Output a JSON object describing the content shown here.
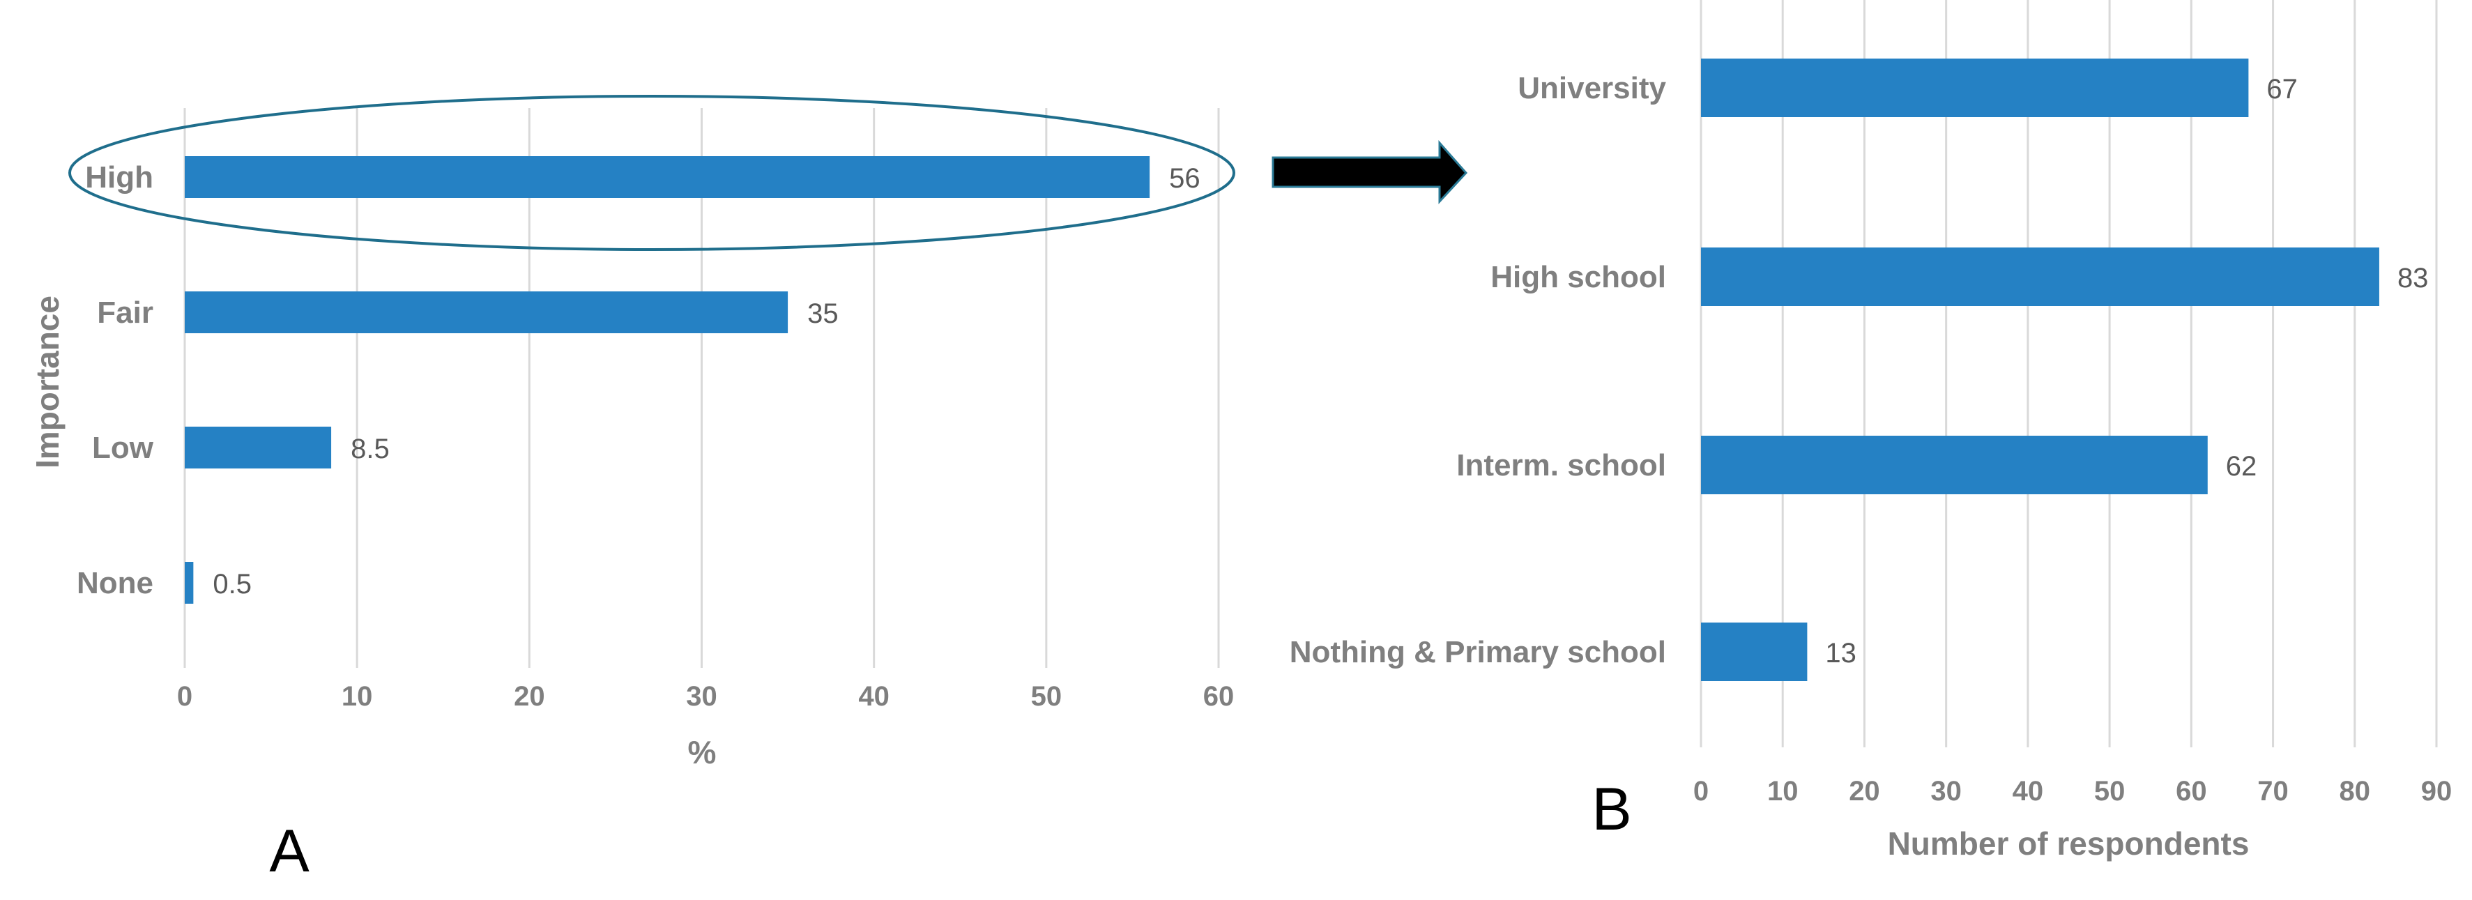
{
  "colors": {
    "bar": "#2581c4",
    "ellipse": "#1f6e8c",
    "arrow_fill": "#000000",
    "arrow_stroke": "#2a7a96"
  },
  "chart_data": [
    {
      "panel": "A",
      "type": "bar",
      "orientation": "horizontal",
      "categories": [
        "High",
        "Fair",
        "Low",
        "None"
      ],
      "values": [
        56,
        35,
        8.5,
        0.5
      ],
      "data_labels": [
        "56",
        "35",
        "8.5",
        "0.5"
      ],
      "xlabel": "%",
      "ylabel": "Importance",
      "xlim": [
        0,
        60
      ],
      "xticks": [
        "0",
        "10",
        "20",
        "30",
        "40",
        "50",
        "60"
      ],
      "grid": true,
      "annotation": "ellipse around High bar with arrow pointing to panel B"
    },
    {
      "panel": "B",
      "type": "bar",
      "orientation": "horizontal",
      "categories": [
        "University",
        "High school",
        "Interm. school",
        "Nothing & Primary school"
      ],
      "values": [
        67,
        83,
        62,
        13
      ],
      "data_labels": [
        "67",
        "83",
        "62",
        "13"
      ],
      "xlabel": "Number of respondents",
      "ylabel": "",
      "xlim": [
        0,
        90
      ],
      "xticks": [
        "0",
        "10",
        "20",
        "30",
        "40",
        "50",
        "60",
        "70",
        "80",
        "90"
      ],
      "grid": true
    }
  ]
}
